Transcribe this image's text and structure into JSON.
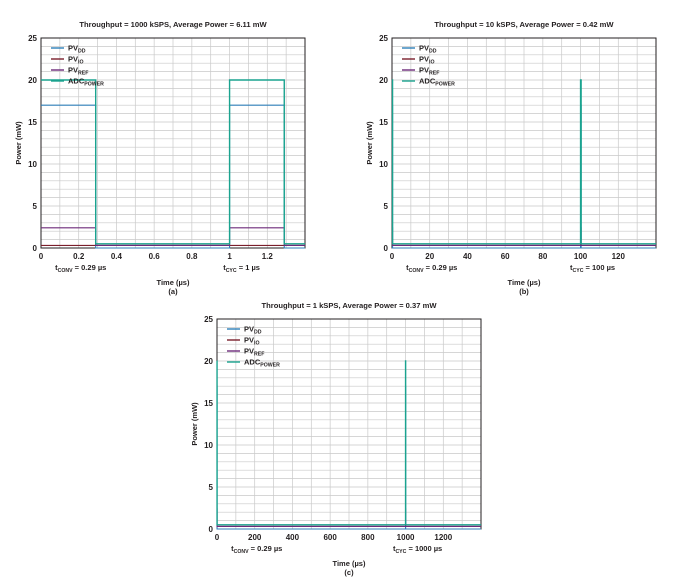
{
  "colors": {
    "pvdd": "#2e7fb8",
    "pvio": "#7b1f2c",
    "pvref": "#6d2a7a",
    "adc_power": "#1aa38f",
    "grid": "#c9c9c9",
    "axis": "#231f20"
  },
  "chart_data": [
    {
      "type": "line",
      "title": "Throughput = 1000 kSPS, Average Power = 6.11 mW",
      "xlabel": "Time (µs)",
      "ylabel": "Power (mW)",
      "panel_label": "(a)",
      "xlim": [
        0,
        1.4
      ],
      "ylim": [
        0,
        25
      ],
      "xticks": [
        "0",
        "0.2",
        "0.4",
        "0.6",
        "0.8",
        "1",
        "1.2"
      ],
      "xtick_values": [
        0,
        0.2,
        0.4,
        0.6,
        0.8,
        1.0,
        1.2
      ],
      "yticks": [
        "0",
        "5",
        "10",
        "15",
        "20",
        "25"
      ],
      "ytick_values": [
        0,
        5,
        10,
        15,
        20,
        25
      ],
      "grid": true,
      "legend_position": "top-left",
      "annotations": {
        "tconv": {
          "main": "t",
          "sub": "CONV",
          "rest": " = 0.29 µs",
          "x": 0.29
        },
        "tcyc": {
          "main": "t",
          "sub": "CYC",
          "rest": " = 1 µs",
          "x": 1.0
        }
      },
      "series": [
        {
          "name": "PV",
          "sub": "DD",
          "color_key": "pvdd",
          "x": [
            0,
            0.29,
            0.29,
            1.0,
            1.0,
            1.29,
            1.29,
            1.4
          ],
          "y": [
            17,
            17,
            0,
            0,
            17,
            17,
            0,
            0
          ]
        },
        {
          "name": "PV",
          "sub": "IO",
          "color_key": "pvio",
          "x": [
            0,
            1.4
          ],
          "y": [
            0.3,
            0.3
          ]
        },
        {
          "name": "PV",
          "sub": "REF",
          "color_key": "pvref",
          "x": [
            0,
            0.29,
            0.29,
            1.0,
            1.0,
            1.29,
            1.29,
            1.4
          ],
          "y": [
            2.4,
            2.4,
            0.3,
            0.3,
            2.4,
            2.4,
            0.3,
            0.3
          ]
        },
        {
          "name": "ADC",
          "sub": "POWER",
          "color_key": "adc_power",
          "x": [
            0,
            0.29,
            0.29,
            1.0,
            1.0,
            1.29,
            1.29,
            1.4
          ],
          "y": [
            20,
            20,
            0.5,
            0.5,
            20,
            20,
            0.5,
            0.5
          ]
        }
      ]
    },
    {
      "type": "line",
      "title": "Throughput = 10 kSPS, Average Power = 0.42 mW",
      "xlabel": "Time (µs)",
      "ylabel": "Power (mW)",
      "panel_label": "(b)",
      "xlim": [
        0,
        140
      ],
      "ylim": [
        0,
        25
      ],
      "xticks": [
        "0",
        "20",
        "40",
        "60",
        "80",
        "100",
        "120"
      ],
      "xtick_values": [
        0,
        20,
        40,
        60,
        80,
        100,
        120
      ],
      "yticks": [
        "0",
        "5",
        "10",
        "15",
        "20",
        "25"
      ],
      "ytick_values": [
        0,
        5,
        10,
        15,
        20,
        25
      ],
      "grid": true,
      "legend_position": "top-left",
      "annotations": {
        "tconv": {
          "main": "t",
          "sub": "CONV",
          "rest": " = 0.29 µs",
          "x": 0.29
        },
        "tcyc": {
          "main": "t",
          "sub": "CYC",
          "rest": " = 100 µs",
          "x": 100
        }
      },
      "series": [
        {
          "name": "PV",
          "sub": "DD",
          "color_key": "pvdd",
          "x": [
            0,
            0.29,
            0.29,
            100,
            100,
            100.29,
            100.29,
            140
          ],
          "y": [
            17,
            17,
            0,
            0,
            17,
            17,
            0,
            0
          ]
        },
        {
          "name": "PV",
          "sub": "IO",
          "color_key": "pvio",
          "x": [
            0,
            140
          ],
          "y": [
            0.3,
            0.3
          ]
        },
        {
          "name": "PV",
          "sub": "REF",
          "color_key": "pvref",
          "x": [
            0,
            0.29,
            0.29,
            100,
            100,
            100.29,
            100.29,
            140
          ],
          "y": [
            2.4,
            2.4,
            0.3,
            0.3,
            2.4,
            2.4,
            0.3,
            0.3
          ]
        },
        {
          "name": "ADC",
          "sub": "POWER",
          "color_key": "adc_power",
          "x": [
            0,
            0.29,
            0.29,
            100,
            100,
            100.29,
            100.29,
            140
          ],
          "y": [
            20,
            20,
            0.5,
            0.5,
            20,
            20,
            0.5,
            0.5
          ]
        }
      ]
    },
    {
      "type": "line",
      "title": "Throughput = 1 kSPS, Average Power = 0.37 mW",
      "xlabel": "Time (µs)",
      "ylabel": "Power (mW)",
      "panel_label": "(c)",
      "xlim": [
        0,
        1400
      ],
      "ylim": [
        0,
        25
      ],
      "xticks": [
        "0",
        "200",
        "400",
        "600",
        "800",
        "1000",
        "1200"
      ],
      "xtick_values": [
        0,
        200,
        400,
        600,
        800,
        1000,
        1200
      ],
      "yticks": [
        "0",
        "5",
        "10",
        "15",
        "20",
        "25"
      ],
      "ytick_values": [
        0,
        5,
        10,
        15,
        20,
        25
      ],
      "grid": true,
      "legend_position": "top-left",
      "annotations": {
        "tconv": {
          "main": "t",
          "sub": "CONV",
          "rest": " = 0.29 µs",
          "x": 0.29
        },
        "tcyc": {
          "main": "t",
          "sub": "CYC",
          "rest": " = 1000 µs",
          "x": 1000
        }
      },
      "series": [
        {
          "name": "PV",
          "sub": "DD",
          "color_key": "pvdd",
          "x": [
            0,
            0.29,
            0.29,
            1000,
            1000,
            1000.29,
            1000.29,
            1400
          ],
          "y": [
            17,
            17,
            0,
            0,
            17,
            17,
            0,
            0
          ]
        },
        {
          "name": "PV",
          "sub": "IO",
          "color_key": "pvio",
          "x": [
            0,
            1400
          ],
          "y": [
            0.3,
            0.3
          ]
        },
        {
          "name": "PV",
          "sub": "REF",
          "color_key": "pvref",
          "x": [
            0,
            0.29,
            0.29,
            1000,
            1000,
            1000.29,
            1000.29,
            1400
          ],
          "y": [
            2.4,
            2.4,
            0.3,
            0.3,
            2.4,
            2.4,
            0.3,
            0.3
          ]
        },
        {
          "name": "ADC",
          "sub": "POWER",
          "color_key": "adc_power",
          "x": [
            0,
            0.29,
            0.29,
            1000,
            1000,
            1000.29,
            1000.29,
            1400
          ],
          "y": [
            20,
            20,
            0.5,
            0.5,
            20,
            20,
            0.5,
            0.5
          ]
        }
      ]
    }
  ]
}
